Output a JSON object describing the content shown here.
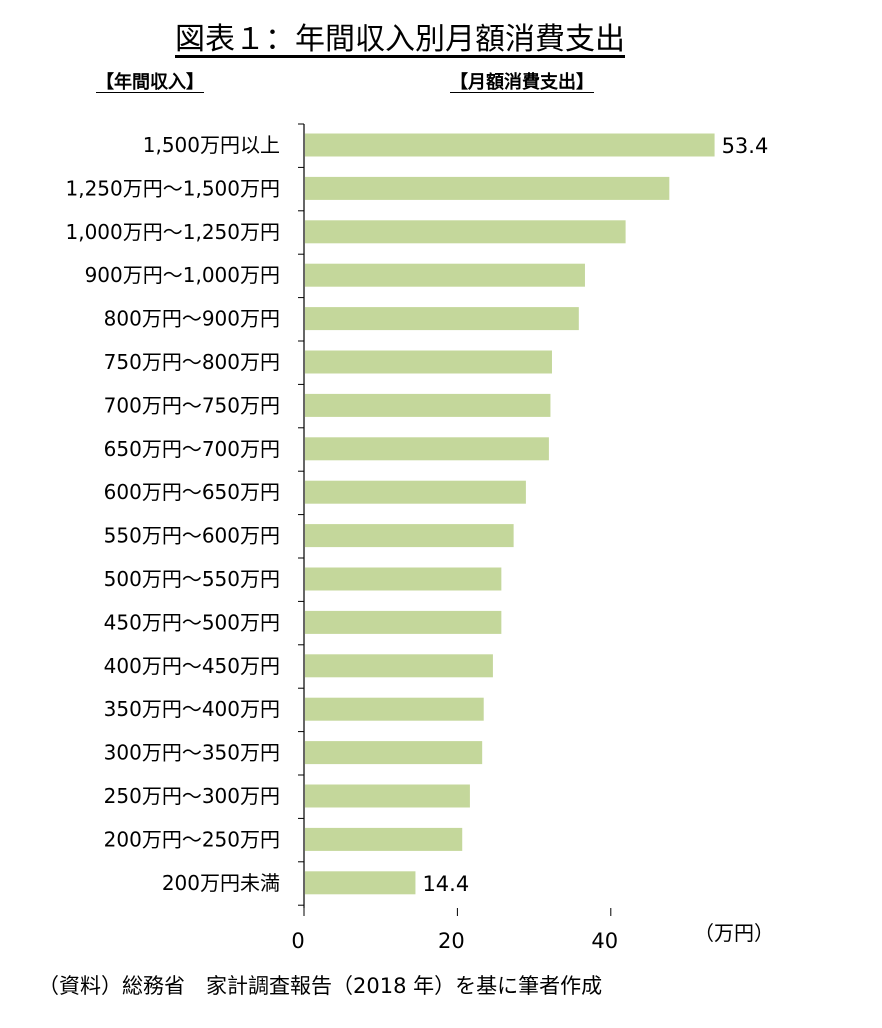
{
  "title": "図表１：年間収入別月額消費支出",
  "left_header": "【年間収入】",
  "right_header": "【月額消費支出】",
  "source": "（資料）総務省　家計調査報告（2018 年）を基に筆者作成",
  "colors": {
    "bar": "#c4d79b",
    "axis": "#000000"
  },
  "chart_data": {
    "type": "bar",
    "orientation": "horizontal",
    "title": "図表１：年間収入別月額消費支出",
    "xlabel": "（万円）",
    "ylabel": "",
    "xlim": [
      0,
      55
    ],
    "xticks": [
      0,
      20,
      40
    ],
    "grid": false,
    "categories": [
      "1,500万円以上",
      "1,250万円～1,500万円",
      "1,000万円～1,250万円",
      "900万円～1,000万円",
      "800万円～900万円",
      "750万円～800万円",
      "700万円～750万円",
      "650万円～700万円",
      "600万円～650万円",
      "550万円～600万円",
      "500万円～550万円",
      "450万円～500万円",
      "400万円～450万円",
      "350万円～400万円",
      "300万円～350万円",
      "250万円～300万円",
      "200万円～250万円",
      "200万円未満"
    ],
    "values": [
      53.4,
      47.5,
      41.8,
      36.5,
      35.7,
      32.2,
      32.0,
      31.8,
      28.8,
      27.2,
      25.6,
      25.6,
      24.5,
      23.3,
      23.1,
      21.5,
      20.5,
      14.4
    ],
    "data_labels": [
      "53.4",
      "",
      "",
      "",
      "",
      "",
      "",
      "",
      "",
      "",
      "",
      "",
      "",
      "",
      "",
      "",
      "",
      "14.4"
    ]
  }
}
